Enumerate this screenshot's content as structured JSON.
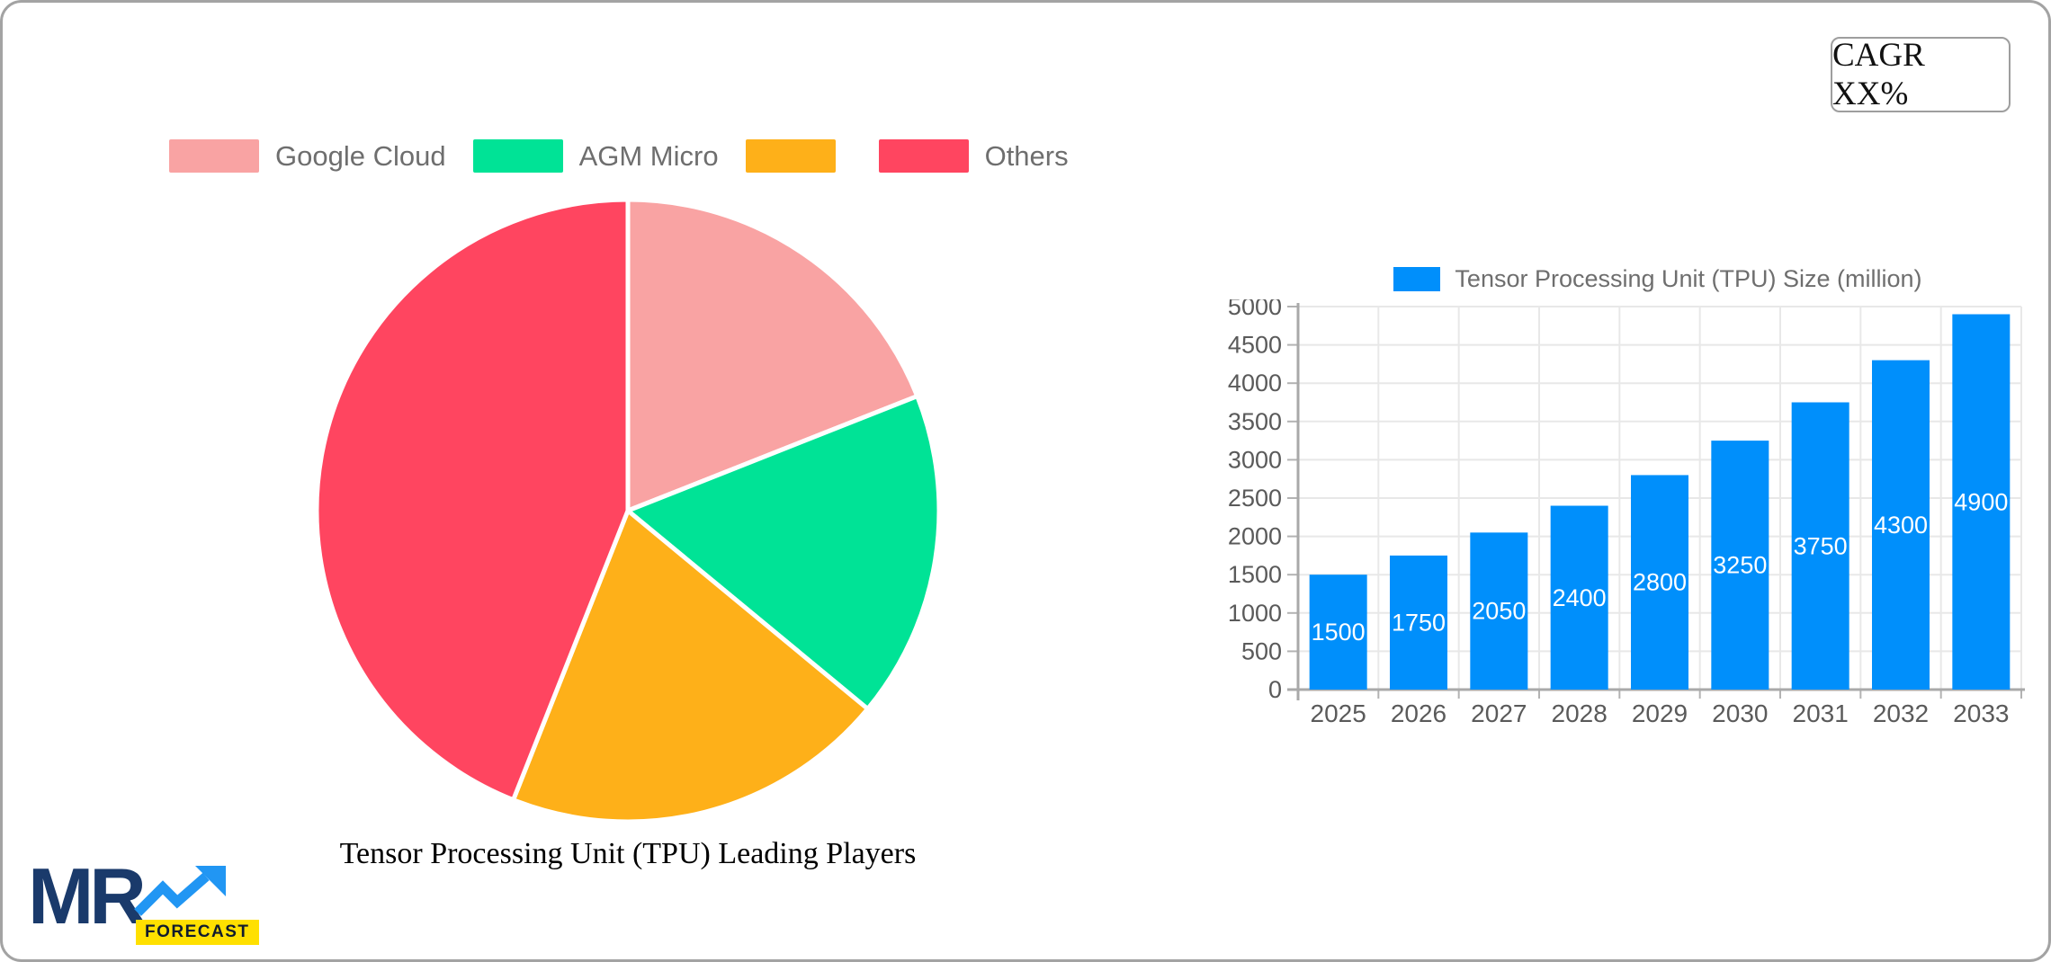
{
  "page": {
    "cagr_badge": "CAGR XX%"
  },
  "logo": {
    "mr": "MR",
    "forecast": "FORECAST",
    "colors": {
      "navy": "#1A3A6B",
      "arrow_blue": "#2196F3",
      "badge_yellow": "#FFE000"
    }
  },
  "chart_data": [
    {
      "type": "pie",
      "title": "Tensor Processing Unit (TPU) Leading Players",
      "categories": [
        "Google Cloud",
        "AGM Micro",
        "",
        "Others"
      ],
      "values": [
        19,
        17,
        20,
        44
      ],
      "value_labels_shown": false,
      "values_note": "percent shares estimated from slice arc angles",
      "colors": [
        "#F9A3A3",
        "#00E396",
        "#FEB019",
        "#FF4560"
      ],
      "slice_border_color": "#FFFFFF",
      "legend_position": "top",
      "start_angle_deg": -90,
      "direction": "clockwise"
    },
    {
      "type": "bar",
      "legend_label": "Tensor Processing Unit (TPU) Size (million)",
      "categories": [
        "2025",
        "2026",
        "2027",
        "2028",
        "2029",
        "2030",
        "2031",
        "2032",
        "2033"
      ],
      "values": [
        1500,
        1750,
        2050,
        2400,
        2800,
        3250,
        3750,
        4300,
        4900
      ],
      "bar_color": "#008FFB",
      "value_label_color": "#FFFFFF",
      "xlabel": "",
      "ylabel": "",
      "ylim": [
        0,
        5000
      ],
      "ytick_step": 500,
      "grid": true,
      "legend_position": "top"
    }
  ]
}
